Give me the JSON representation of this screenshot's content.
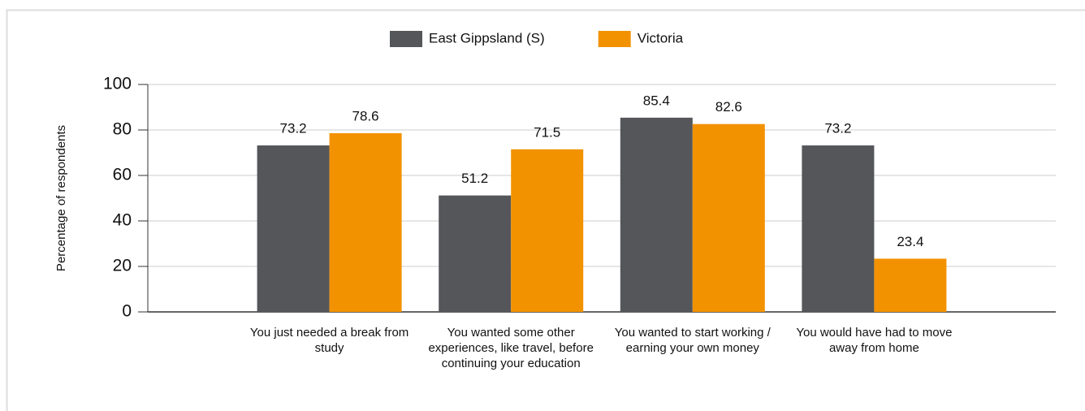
{
  "chart_data": {
    "type": "bar",
    "y_label": "Percentage of respondents",
    "categories": [
      "You just needed a break from study",
      "You wanted some other experiences, like travel, before continuing your education",
      "You wanted to start working / earning your own money",
      "You would have had to move away from home"
    ],
    "series": [
      {
        "name": "East Gippsland (S)",
        "color": "#54565a",
        "values": [
          73.2,
          51.2,
          85.4,
          73.2
        ]
      },
      {
        "name": "Victoria",
        "color": "#f39200",
        "values": [
          78.6,
          71.5,
          82.6,
          23.4
        ]
      }
    ],
    "ylim": [
      0,
      100
    ],
    "yticks": [
      0,
      20,
      40,
      60,
      80,
      100
    ],
    "grid": true,
    "legend": "top"
  }
}
